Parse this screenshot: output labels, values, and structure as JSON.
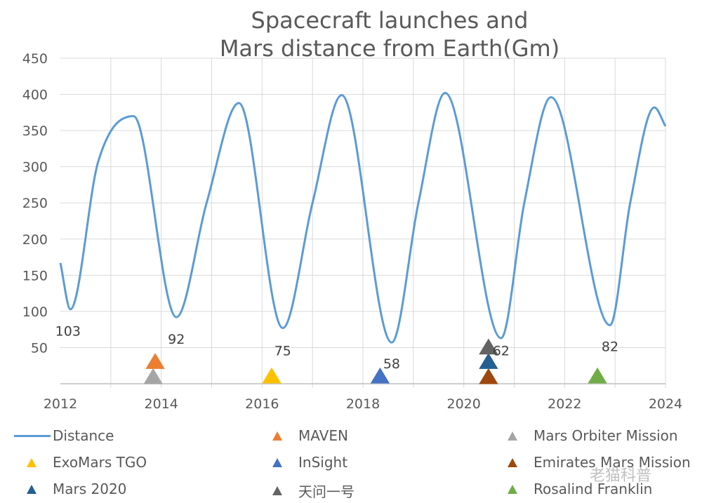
{
  "chart_data": {
    "type": "line",
    "title": [
      "Spacecraft launches and",
      "Mars distance from Earth(Gm)"
    ],
    "xlabel": "",
    "ylabel": "",
    "xlim": [
      2012,
      2024
    ],
    "ylim": [
      0,
      450
    ],
    "x_ticks": [
      "2012",
      "2014",
      "2016",
      "2018",
      "2020",
      "2022",
      "2024"
    ],
    "y_ticks": [
      "50",
      "100",
      "150",
      "200",
      "250",
      "300",
      "350",
      "400",
      "450"
    ],
    "grid": true,
    "legend_position": "bottom",
    "series": [
      {
        "name": "Distance",
        "color": "#5b9bd5",
        "points": [
          [
            2012.0,
            167
          ],
          [
            2012.2,
            103
          ],
          [
            2012.75,
            307
          ],
          [
            2013.45,
            370
          ],
          [
            2014.3,
            92
          ],
          [
            2014.9,
            250
          ],
          [
            2015.54,
            388
          ],
          [
            2016.41,
            77
          ],
          [
            2017.0,
            250
          ],
          [
            2017.58,
            399
          ],
          [
            2018.57,
            57
          ],
          [
            2019.1,
            250
          ],
          [
            2019.63,
            402
          ],
          [
            2020.74,
            63
          ],
          [
            2021.2,
            250
          ],
          [
            2021.73,
            396
          ],
          [
            2022.9,
            81
          ],
          [
            2023.3,
            250
          ],
          [
            2023.78,
            382
          ],
          [
            2024.0,
            356
          ]
        ]
      }
    ],
    "markers": [
      {
        "name": "MAVEN",
        "color": "#ed7d31",
        "x": 2013.88,
        "y": 30
      },
      {
        "name": "Mars Orbiter Mission",
        "color": "#a5a5a5",
        "x": 2013.84,
        "y": 9
      },
      {
        "name": "ExoMars TGO",
        "color": "#ffc000",
        "x": 2016.19,
        "y": 10
      },
      {
        "name": "InSight",
        "color": "#4472c4",
        "x": 2018.34,
        "y": 10
      },
      {
        "name": "Emirates Mars Mission",
        "color": "#9e480e",
        "x": 2020.49,
        "y": 9
      },
      {
        "name": "Mars 2020",
        "color": "#255e91",
        "x": 2020.49,
        "y": 30
      },
      {
        "name": "天问一号",
        "color": "#636363",
        "x": 2020.49,
        "y": 50
      },
      {
        "name": "Rosalind Franklin",
        "color": "#70ad47",
        "x": 2022.65,
        "y": 10
      }
    ],
    "annotations": [
      {
        "text": "103",
        "x": 2012.15,
        "y": 73
      },
      {
        "text": "92",
        "x": 2014.3,
        "y": 62
      },
      {
        "text": "75",
        "x": 2016.41,
        "y": 46
      },
      {
        "text": "58",
        "x": 2018.57,
        "y": 28
      },
      {
        "text": "62",
        "x": 2020.74,
        "y": 46
      },
      {
        "text": "82",
        "x": 2022.9,
        "y": 52
      }
    ],
    "legend_order": [
      "Distance",
      "MAVEN",
      "Mars Orbiter Mission",
      "ExoMars TGO",
      "InSight",
      "Emirates Mars Mission",
      "Mars 2020",
      "天问一号",
      "Rosalind Franklin"
    ]
  },
  "watermark": "老猫科普"
}
